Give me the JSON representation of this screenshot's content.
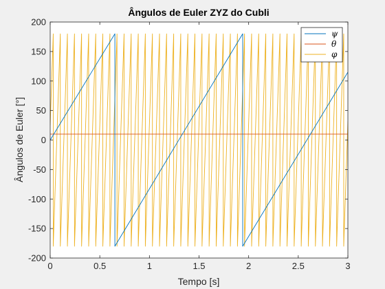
{
  "chart_data": {
    "type": "line",
    "title": "Ângulos de Euler ZYZ do Cubli",
    "xlabel": "Tempo [s]",
    "ylabel": "Ângulos de Euler [°]",
    "xlim": [
      0,
      3
    ],
    "ylim": [
      -200,
      200
    ],
    "xticks": [
      0,
      0.5,
      1,
      1.5,
      2,
      2.5,
      3
    ],
    "xtick_labels": [
      "0",
      "0.5",
      "1",
      "1.5",
      "2",
      "2.5",
      "3"
    ],
    "yticks": [
      -200,
      -150,
      -100,
      -50,
      0,
      50,
      100,
      150,
      200
    ],
    "ytick_labels": [
      "-200",
      "-150",
      "-100",
      "-50",
      "0",
      "50",
      "100",
      "150",
      "200"
    ],
    "grid": false,
    "legend_position": "top-right",
    "series": [
      {
        "name": "ψ",
        "color": "#0072BD",
        "x": [
          0,
          0.652,
          0.652,
          1.94,
          1.94,
          3.0
        ],
        "y": [
          0,
          180,
          -180,
          180,
          -180,
          115
        ]
      },
      {
        "name": "θ",
        "color": "#D95319",
        "x": [
          0,
          3.0
        ],
        "y": [
          10,
          10
        ]
      },
      {
        "name": "φ",
        "color": "#EDB120",
        "sawtooth": {
          "start_x": 0,
          "start_y": 25,
          "period": 0.0714,
          "min": -180,
          "max": 180,
          "end_x": 3.0,
          "end_y": -45
        }
      }
    ]
  }
}
